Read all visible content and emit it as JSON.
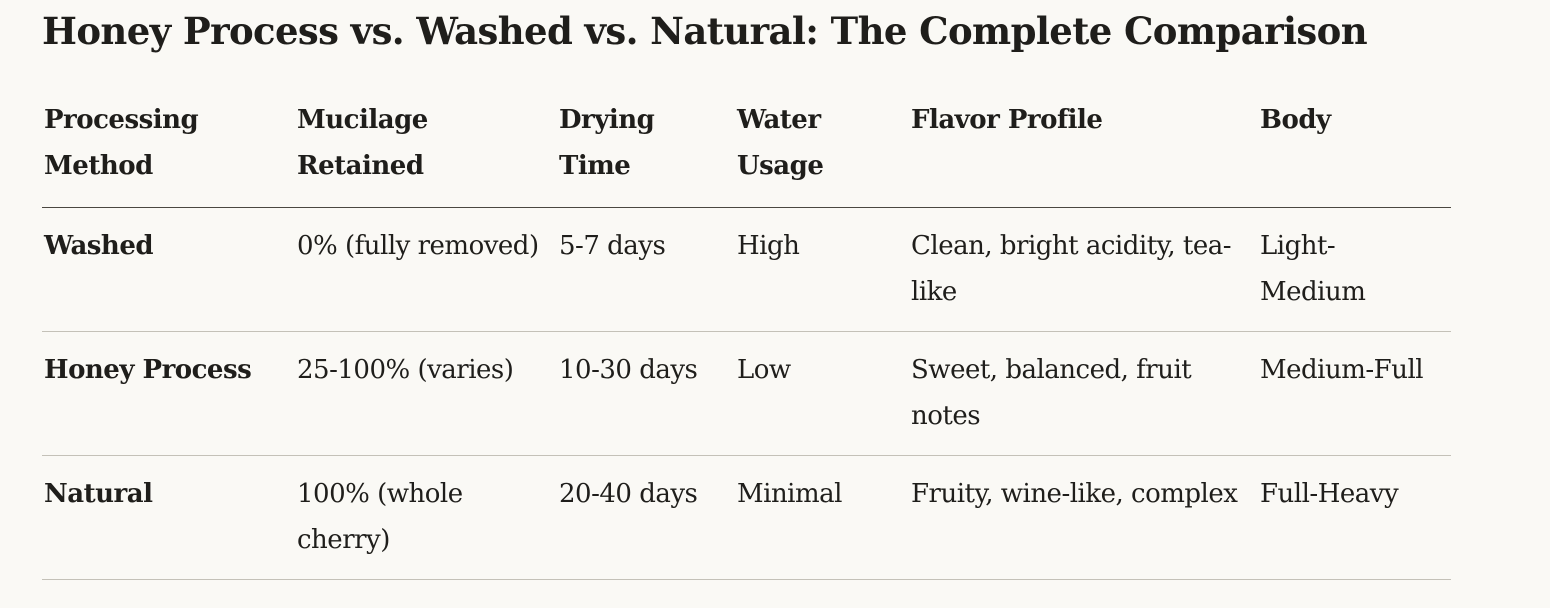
{
  "page": {
    "title": "Honey Process vs. Washed vs. Natural: The Complete Comparison"
  },
  "table": {
    "headers": [
      "Processing Method",
      "Mucilage Retained",
      "Drying Time",
      "Water Usage",
      "Flavor Profile",
      "Body"
    ],
    "rows": [
      [
        "Washed",
        "0% (fully removed)",
        "5-7 days",
        "High",
        "Clean, bright acidity, tea-like",
        "Light-Medium"
      ],
      [
        "Honey Process",
        "25-100% (varies)",
        "10-30 days",
        "Low",
        "Sweet, balanced, fruit notes",
        "Medium-Full"
      ],
      [
        "Natural",
        "100% (whole cherry)",
        "20-40 days",
        "Minimal",
        "Fruity, wine-like, complex",
        "Full-Heavy"
      ]
    ]
  },
  "colors": {
    "background": "#faf9f5",
    "text": "#1f1e1b",
    "header_rule": "#4a4740",
    "row_rule": "#c4c1b8"
  }
}
